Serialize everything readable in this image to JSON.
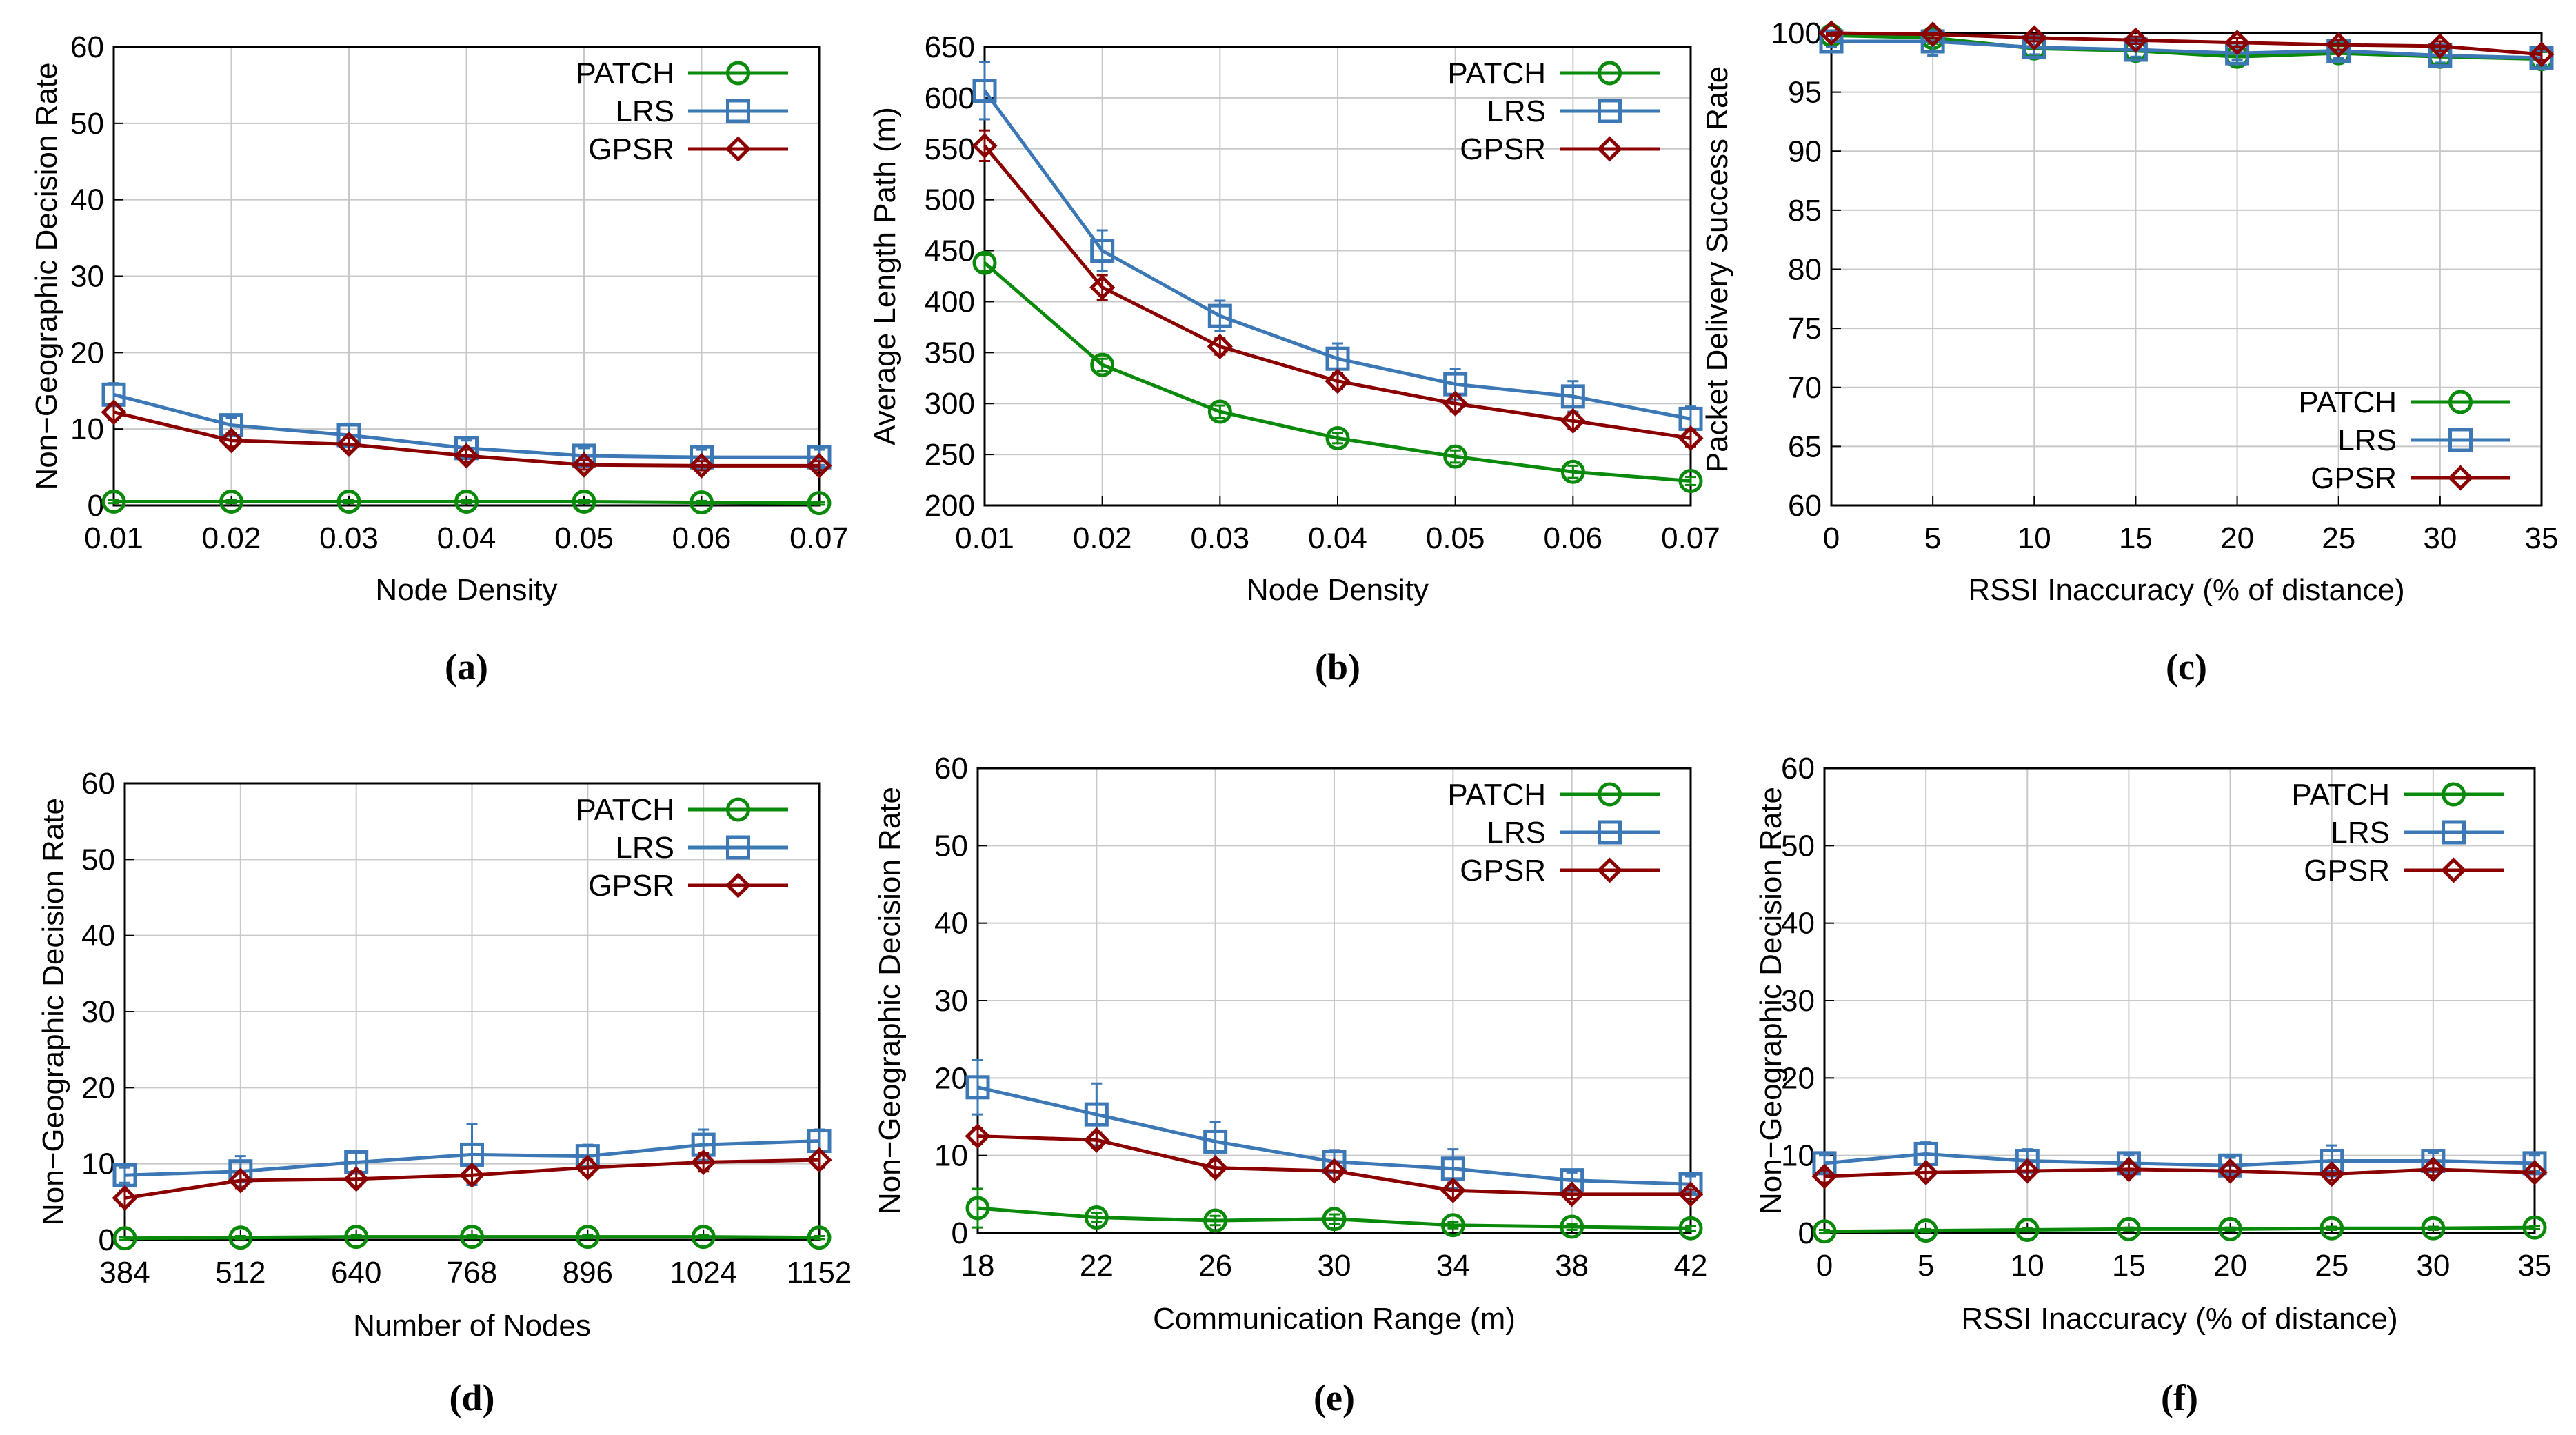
{
  "figure": {
    "series_styles": [
      {
        "name": "PATCH",
        "color": "#0a8a0a",
        "marker": "circle"
      },
      {
        "name": "LRS",
        "color": "#3b78b5",
        "marker": "square"
      },
      {
        "name": "GPSR",
        "color": "#8b0000",
        "marker": "diamond"
      }
    ]
  },
  "chart_data": [
    {
      "id": "a",
      "panel_label": "(a)",
      "type": "line",
      "xlabel": "Node Density",
      "ylabel": "Non−Geographic Decision Rate",
      "x_ticks": [
        "0.01",
        "0.02",
        "0.03",
        "0.04",
        "0.05",
        "0.06",
        "0.07"
      ],
      "y_ticks": [
        "0",
        "10",
        "20",
        "30",
        "40",
        "50",
        "60"
      ],
      "xlim": [
        0.01,
        0.07
      ],
      "ylim": [
        0,
        60
      ],
      "legend_position": "top-right",
      "series": [
        {
          "name": "PATCH",
          "x": [
            0.01,
            0.02,
            0.03,
            0.04,
            0.05,
            0.06,
            0.07
          ],
          "values": [
            0.5,
            0.5,
            0.5,
            0.5,
            0.5,
            0.4,
            0.3
          ],
          "err": [
            0.2,
            0.2,
            0.2,
            0.2,
            0.2,
            0.2,
            0.2
          ]
        },
        {
          "name": "LRS",
          "x": [
            0.01,
            0.02,
            0.03,
            0.04,
            0.05,
            0.06,
            0.07
          ],
          "values": [
            14.5,
            10.5,
            9.2,
            7.5,
            6.5,
            6.3,
            6.3
          ],
          "err": [
            1.5,
            1.0,
            1.5,
            1.0,
            1.0,
            1.0,
            1.0
          ]
        },
        {
          "name": "GPSR",
          "x": [
            0.01,
            0.02,
            0.03,
            0.04,
            0.05,
            0.06,
            0.07
          ],
          "values": [
            12.2,
            8.5,
            8.0,
            6.5,
            5.3,
            5.2,
            5.2
          ],
          "err": [
            1.0,
            0.8,
            0.8,
            0.8,
            0.6,
            0.6,
            0.6
          ]
        }
      ]
    },
    {
      "id": "b",
      "panel_label": "(b)",
      "type": "line",
      "xlabel": "Node Density",
      "ylabel": "Average Length Path (m)",
      "x_ticks": [
        "0.01",
        "0.02",
        "0.03",
        "0.04",
        "0.05",
        "0.06",
        "0.07"
      ],
      "y_ticks": [
        "200",
        "250",
        "300",
        "350",
        "400",
        "450",
        "500",
        "550",
        "600",
        "650"
      ],
      "xlim": [
        0.01,
        0.07
      ],
      "ylim": [
        200,
        650
      ],
      "legend_position": "top-right",
      "series": [
        {
          "name": "PATCH",
          "x": [
            0.01,
            0.02,
            0.03,
            0.04,
            0.05,
            0.06,
            0.07
          ],
          "values": [
            438,
            338,
            292,
            266,
            248,
            233,
            224
          ],
          "err": [
            8,
            6,
            6,
            5,
            6,
            6,
            4
          ]
        },
        {
          "name": "LRS",
          "x": [
            0.01,
            0.02,
            0.03,
            0.04,
            0.05,
            0.06,
            0.07
          ],
          "values": [
            607,
            450,
            386,
            344,
            319,
            307,
            285
          ],
          "err": [
            28,
            20,
            15,
            15,
            15,
            15,
            12
          ]
        },
        {
          "name": "GPSR",
          "x": [
            0.01,
            0.02,
            0.03,
            0.04,
            0.05,
            0.06,
            0.07
          ],
          "values": [
            553,
            414,
            356,
            322,
            300,
            283,
            266
          ],
          "err": [
            15,
            12,
            8,
            8,
            8,
            8,
            8
          ]
        }
      ]
    },
    {
      "id": "c",
      "panel_label": "(c)",
      "type": "line",
      "xlabel": "RSSI Inaccuracy (% of distance)",
      "ylabel": "Packet Delivery Success Rate",
      "x_ticks": [
        "0",
        "5",
        "10",
        "15",
        "20",
        "25",
        "30",
        "35"
      ],
      "y_ticks": [
        "60",
        "65",
        "70",
        "75",
        "80",
        "85",
        "90",
        "95",
        "100"
      ],
      "xlim": [
        0,
        35
      ],
      "ylim": [
        60,
        100
      ],
      "legend_position": "bottom-right",
      "series": [
        {
          "name": "PATCH",
          "x": [
            0,
            5,
            10,
            15,
            20,
            25,
            30,
            35
          ],
          "values": [
            99.8,
            99.6,
            98.7,
            98.5,
            98.0,
            98.3,
            98.0,
            97.8
          ],
          "err": [
            0.4,
            0.5,
            0.6,
            0.6,
            0.6,
            0.6,
            0.6,
            0.6
          ]
        },
        {
          "name": "LRS",
          "x": [
            0,
            5,
            10,
            15,
            20,
            25,
            30,
            35
          ],
          "values": [
            99.3,
            99.3,
            98.8,
            98.6,
            98.3,
            98.5,
            98.1,
            97.9
          ],
          "err": [
            0.5,
            1.2,
            0.6,
            0.6,
            0.6,
            0.6,
            0.6,
            0.6
          ]
        },
        {
          "name": "GPSR",
          "x": [
            0,
            5,
            10,
            15,
            20,
            25,
            30,
            35
          ],
          "values": [
            100,
            99.9,
            99.6,
            99.4,
            99.2,
            99.0,
            98.9,
            98.2
          ],
          "err": [
            0.2,
            0.3,
            0.3,
            0.3,
            0.4,
            0.4,
            0.4,
            0.5
          ]
        }
      ]
    },
    {
      "id": "d",
      "panel_label": "(d)",
      "type": "line",
      "xlabel": "Number of Nodes",
      "ylabel": "Non−Geographic Decision Rate",
      "x_ticks": [
        "384",
        "512",
        "640",
        "768",
        "896",
        "1024",
        "1152"
      ],
      "y_ticks": [
        "0",
        "10",
        "20",
        "30",
        "40",
        "50",
        "60"
      ],
      "xlim": [
        384,
        1152
      ],
      "ylim": [
        0,
        60
      ],
      "legend_position": "top-right",
      "series": [
        {
          "name": "PATCH",
          "x": [
            384,
            512,
            640,
            768,
            896,
            1024,
            1152
          ],
          "values": [
            0.2,
            0.3,
            0.4,
            0.4,
            0.4,
            0.4,
            0.3
          ],
          "err": [
            0.2,
            0.2,
            0.2,
            0.2,
            0.2,
            0.2,
            0.2
          ]
        },
        {
          "name": "LRS",
          "x": [
            384,
            512,
            640,
            768,
            896,
            1024,
            1152
          ],
          "values": [
            8.5,
            9.0,
            10.2,
            11.2,
            11.0,
            12.5,
            13.0
          ],
          "err": [
            1.0,
            2.0,
            1.5,
            4.0,
            1.5,
            2.0,
            1.5
          ]
        },
        {
          "name": "GPSR",
          "x": [
            384,
            512,
            640,
            768,
            896,
            1024,
            1152
          ],
          "values": [
            5.5,
            7.8,
            8.0,
            8.5,
            9.5,
            10.2,
            10.5
          ],
          "err": [
            1.0,
            1.0,
            1.0,
            1.0,
            1.0,
            1.2,
            1.0
          ]
        }
      ]
    },
    {
      "id": "e",
      "panel_label": "(e)",
      "type": "line",
      "xlabel": "Communication Range (m)",
      "ylabel": "Non−Geographic Decision Rate",
      "x_ticks": [
        "18",
        "22",
        "26",
        "30",
        "34",
        "38",
        "42"
      ],
      "y_ticks": [
        "0",
        "10",
        "20",
        "30",
        "40",
        "50",
        "60"
      ],
      "xlim": [
        18,
        42
      ],
      "ylim": [
        0,
        60
      ],
      "legend_position": "top-right",
      "series": [
        {
          "name": "PATCH",
          "x": [
            18,
            22,
            26,
            30,
            34,
            38,
            42
          ],
          "values": [
            3.2,
            2.0,
            1.6,
            1.8,
            1.0,
            0.8,
            0.6
          ],
          "err": [
            2.5,
            0.6,
            0.6,
            0.6,
            0.4,
            0.4,
            0.3
          ]
        },
        {
          "name": "LRS",
          "x": [
            18,
            22,
            26,
            30,
            34,
            38,
            42
          ],
          "values": [
            18.8,
            15.3,
            11.8,
            9.2,
            8.3,
            6.8,
            6.3
          ],
          "err": [
            3.5,
            4.0,
            2.5,
            1.5,
            2.5,
            1.0,
            1.0
          ]
        },
        {
          "name": "GPSR",
          "x": [
            18,
            22,
            26,
            30,
            34,
            38,
            42
          ],
          "values": [
            12.5,
            12.0,
            8.4,
            8.0,
            5.5,
            5.0,
            5.0
          ],
          "err": [
            1.0,
            1.0,
            1.0,
            1.0,
            1.0,
            0.6,
            0.6
          ]
        }
      ]
    },
    {
      "id": "f",
      "panel_label": "(f)",
      "type": "line",
      "xlabel": "RSSI Inaccuracy (% of distance)",
      "ylabel": "Non−Geographic Decision Rate",
      "x_ticks": [
        "0",
        "5",
        "10",
        "15",
        "20",
        "25",
        "30",
        "35"
      ],
      "y_ticks": [
        "0",
        "10",
        "20",
        "30",
        "40",
        "50",
        "60"
      ],
      "xlim": [
        0,
        35
      ],
      "ylim": [
        0,
        60
      ],
      "legend_position": "top-right",
      "series": [
        {
          "name": "PATCH",
          "x": [
            0,
            5,
            10,
            15,
            20,
            25,
            30,
            35
          ],
          "values": [
            0.2,
            0.3,
            0.4,
            0.5,
            0.5,
            0.6,
            0.6,
            0.7
          ],
          "err": [
            0.2,
            0.2,
            0.2,
            0.2,
            0.2,
            0.2,
            0.2,
            0.2
          ]
        },
        {
          "name": "LRS",
          "x": [
            0,
            5,
            10,
            15,
            20,
            25,
            30,
            35
          ],
          "values": [
            9.0,
            10.2,
            9.3,
            9.0,
            8.7,
            9.3,
            9.3,
            9.0
          ],
          "err": [
            1.0,
            1.5,
            1.5,
            1.0,
            1.0,
            2.0,
            1.0,
            1.0
          ]
        },
        {
          "name": "GPSR",
          "x": [
            0,
            5,
            10,
            15,
            20,
            25,
            30,
            35
          ],
          "values": [
            7.3,
            7.8,
            8.0,
            8.2,
            8.0,
            7.6,
            8.2,
            7.8
          ],
          "err": [
            0.8,
            0.8,
            0.8,
            0.8,
            0.8,
            0.8,
            0.8,
            0.8
          ]
        }
      ]
    }
  ]
}
